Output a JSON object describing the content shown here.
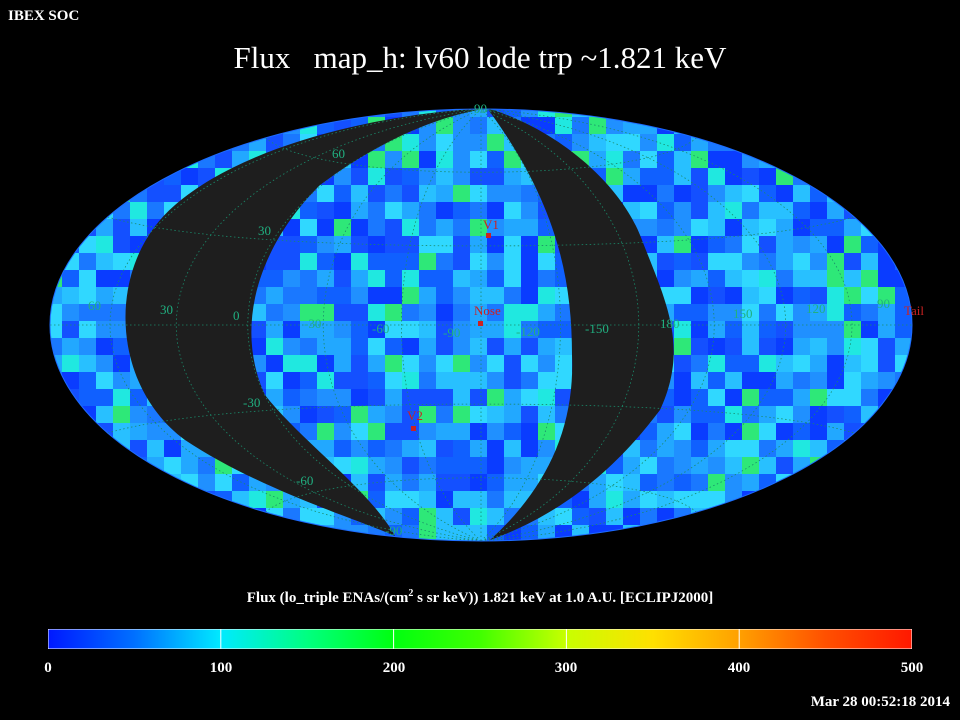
{
  "header": {
    "soc_label": "IBEX SOC",
    "title": "Flux   map_h: lv60 lode trp ~1.821 keV"
  },
  "map": {
    "projection": "Aitoff-Hammer",
    "nodata_color": "#1e1e1e",
    "grid_color": "#1a8a6a",
    "lat_labels": [
      "90",
      "60",
      "30",
      "-30",
      "-60",
      "-90"
    ],
    "lon_labels": [
      "60",
      "30",
      "0",
      "-30",
      "-60",
      "-90",
      "-120",
      "-150",
      "180",
      "150",
      "120",
      "90"
    ],
    "markers": [
      {
        "name": "V1",
        "color": "#cc2222"
      },
      {
        "name": "Nose",
        "color": "#cc2222"
      },
      {
        "name": "V2",
        "color": "#cc2222"
      },
      {
        "name": "Tail",
        "color": "#cc2222"
      }
    ]
  },
  "colorbar": {
    "title_pre": "Flux (lo_triple ENAs/(cm",
    "title_sup": "2",
    "title_post": " s sr keV))  1.821 keV at 1.0 A.U. [ECLIPJ2000]",
    "ticks": [
      "0",
      "100",
      "200",
      "300",
      "400",
      "500"
    ],
    "min": 0,
    "max": 500
  },
  "timestamp": "Mar 28 00:52:18 2014"
}
